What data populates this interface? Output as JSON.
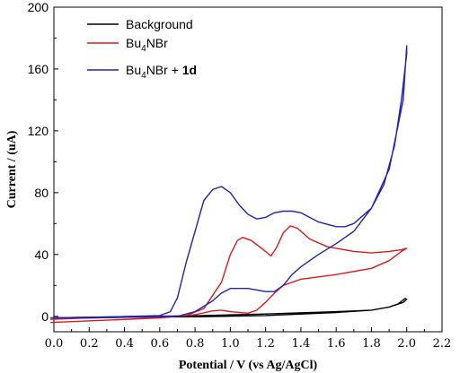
{
  "chart_data": {
    "type": "line",
    "xlabel": "Potential / V (vs Ag/AgCl)",
    "ylabel": "Current / (uA)",
    "xlim": [
      0.0,
      2.2
    ],
    "ylim": [
      -10,
      200
    ],
    "x_ticks": [
      "0.0",
      "0.2",
      "0.4",
      "0.6",
      "0.8",
      "1.0",
      "1.2",
      "1.4",
      "1.6",
      "1.8",
      "2.0",
      "2.2"
    ],
    "x_tick_values": [
      0.0,
      0.2,
      0.4,
      0.6,
      0.8,
      1.0,
      1.2,
      1.4,
      1.6,
      1.8,
      2.0,
      2.2
    ],
    "y_ticks": [
      "0",
      "40",
      "80",
      "120",
      "160",
      "200"
    ],
    "y_tick_values": [
      0,
      40,
      80,
      120,
      160,
      200
    ],
    "legend_position": "top-left",
    "grid": false,
    "series": [
      {
        "name": "Background",
        "legend": {
          "main": "Background",
          "sub": "",
          "tail": "",
          "bold": ""
        },
        "color": "#000000",
        "points": [
          [
            0.0,
            -1
          ],
          [
            0.4,
            -0.5
          ],
          [
            0.8,
            -0.3
          ],
          [
            1.2,
            0.5
          ],
          [
            1.6,
            2.5
          ],
          [
            1.8,
            4
          ],
          [
            1.9,
            6
          ],
          [
            1.95,
            8
          ],
          [
            1.99,
            11.5
          ],
          [
            2.0,
            11
          ],
          [
            1.98,
            9
          ],
          [
            1.9,
            6
          ],
          [
            1.8,
            4
          ],
          [
            1.6,
            3
          ],
          [
            1.2,
            1.5
          ],
          [
            0.8,
            0.3
          ],
          [
            0.4,
            -0.2
          ],
          [
            0.0,
            -1
          ]
        ]
      },
      {
        "name": "Bu4NBr",
        "legend": {
          "main": "Bu",
          "sub": "4",
          "tail": "NBr",
          "bold": ""
        },
        "color": "#e0191b",
        "points": [
          [
            -0.02,
            -4
          ],
          [
            0.3,
            -2.5
          ],
          [
            0.6,
            -1
          ],
          [
            0.75,
            0.5
          ],
          [
            0.85,
            5
          ],
          [
            0.95,
            22
          ],
          [
            1.0,
            40
          ],
          [
            1.04,
            49
          ],
          [
            1.07,
            51
          ],
          [
            1.12,
            49
          ],
          [
            1.2,
            42
          ],
          [
            1.23,
            39
          ],
          [
            1.26,
            44
          ],
          [
            1.3,
            54
          ],
          [
            1.34,
            58.5
          ],
          [
            1.38,
            57
          ],
          [
            1.45,
            50
          ],
          [
            1.55,
            45
          ],
          [
            1.7,
            42
          ],
          [
            1.8,
            41
          ],
          [
            1.9,
            42
          ],
          [
            1.97,
            43
          ],
          [
            2.0,
            44
          ],
          [
            1.97,
            42
          ],
          [
            1.9,
            36
          ],
          [
            1.8,
            31
          ],
          [
            1.6,
            27
          ],
          [
            1.4,
            24
          ],
          [
            1.3,
            20
          ],
          [
            1.25,
            15
          ],
          [
            1.2,
            9
          ],
          [
            1.15,
            4
          ],
          [
            1.1,
            2
          ],
          [
            1.0,
            3
          ],
          [
            0.95,
            4
          ],
          [
            0.9,
            3.5
          ],
          [
            0.8,
            1
          ],
          [
            0.7,
            0
          ],
          [
            0.5,
            -0.5
          ],
          [
            0.2,
            -1
          ],
          [
            -0.02,
            -2
          ]
        ]
      },
      {
        "name": "Bu4NBr + 1d",
        "legend": {
          "main": "Bu",
          "sub": "4",
          "tail": "NBr + ",
          "bold": "1d"
        },
        "color": "#1f24b4",
        "points": [
          [
            -0.02,
            -1
          ],
          [
            0.3,
            -0.5
          ],
          [
            0.6,
            0.5
          ],
          [
            0.66,
            3
          ],
          [
            0.7,
            12
          ],
          [
            0.75,
            35
          ],
          [
            0.8,
            55
          ],
          [
            0.85,
            75
          ],
          [
            0.9,
            82
          ],
          [
            0.95,
            84
          ],
          [
            1.0,
            80
          ],
          [
            1.05,
            72
          ],
          [
            1.1,
            66
          ],
          [
            1.15,
            63
          ],
          [
            1.2,
            64
          ],
          [
            1.25,
            67
          ],
          [
            1.3,
            68
          ],
          [
            1.35,
            68
          ],
          [
            1.4,
            67
          ],
          [
            1.5,
            61
          ],
          [
            1.6,
            58
          ],
          [
            1.65,
            58
          ],
          [
            1.7,
            60
          ],
          [
            1.8,
            70
          ],
          [
            1.87,
            85
          ],
          [
            1.93,
            110
          ],
          [
            1.97,
            140
          ],
          [
            2.0,
            170
          ],
          [
            2.0,
            175
          ],
          [
            1.98,
            140
          ],
          [
            1.9,
            95
          ],
          [
            1.8,
            70
          ],
          [
            1.7,
            55
          ],
          [
            1.6,
            47
          ],
          [
            1.5,
            40
          ],
          [
            1.4,
            32
          ],
          [
            1.35,
            27
          ],
          [
            1.3,
            20
          ],
          [
            1.25,
            16
          ],
          [
            1.2,
            16
          ],
          [
            1.1,
            18
          ],
          [
            1.0,
            18
          ],
          [
            0.95,
            15
          ],
          [
            0.9,
            10
          ],
          [
            0.8,
            3
          ],
          [
            0.7,
            0
          ],
          [
            0.5,
            -0.5
          ],
          [
            0.2,
            -1
          ],
          [
            -0.02,
            -1
          ]
        ]
      }
    ]
  }
}
